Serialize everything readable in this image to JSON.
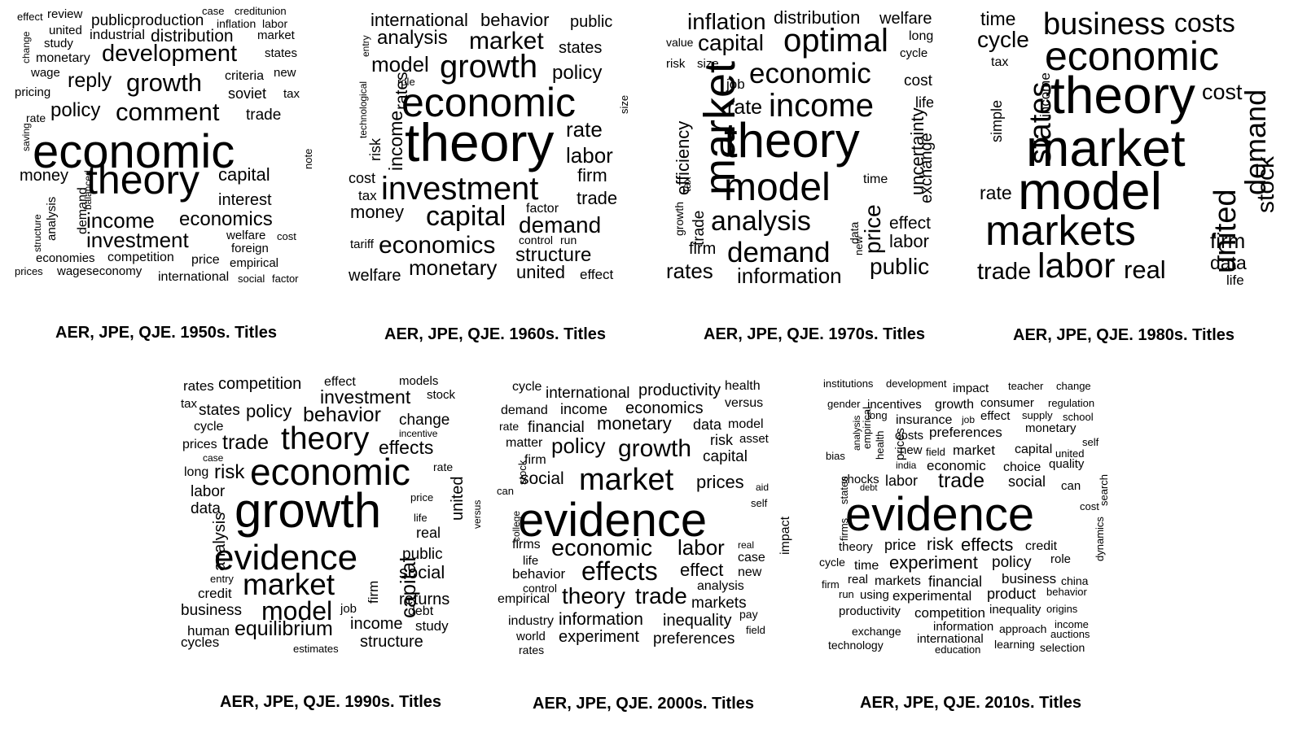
{
  "panels": [
    {
      "caption": "AER, JPE, QJE. 1950s. Titles",
      "words": [
        {
          "t": "effect"
        },
        {
          "t": "review"
        },
        {
          "t": "case"
        },
        {
          "t": "creditunion"
        },
        {
          "t": "change"
        },
        {
          "t": "united"
        },
        {
          "t": "publicproduction"
        },
        {
          "t": "inflation"
        },
        {
          "t": "labor"
        },
        {
          "t": "study"
        },
        {
          "t": "industrial"
        },
        {
          "t": "distribution"
        },
        {
          "t": "market"
        },
        {
          "t": "monetary"
        },
        {
          "t": "development"
        },
        {
          "t": "states"
        },
        {
          "t": "wage"
        },
        {
          "t": "reply"
        },
        {
          "t": "growth"
        },
        {
          "t": "criteria"
        },
        {
          "t": "new"
        },
        {
          "t": "pricing"
        },
        {
          "t": "soviet"
        },
        {
          "t": "tax"
        },
        {
          "t": "policy"
        },
        {
          "t": "comment"
        },
        {
          "t": "trade"
        },
        {
          "t": "rate"
        },
        {
          "t": "saving"
        },
        {
          "t": "economic"
        },
        {
          "t": "note"
        },
        {
          "t": "money"
        },
        {
          "t": "theory"
        },
        {
          "t": "capital"
        },
        {
          "t": "balanced"
        },
        {
          "t": "interest"
        },
        {
          "t": "analysis"
        },
        {
          "t": "demand"
        },
        {
          "t": "income"
        },
        {
          "t": "economics"
        },
        {
          "t": "structure"
        },
        {
          "t": "investment"
        },
        {
          "t": "welfare"
        },
        {
          "t": "cost"
        },
        {
          "t": "foreign"
        },
        {
          "t": "economies"
        },
        {
          "t": "competition"
        },
        {
          "t": "price"
        },
        {
          "t": "empirical"
        },
        {
          "t": "prices"
        },
        {
          "t": "wageseconomy"
        },
        {
          "t": "international"
        },
        {
          "t": "social"
        },
        {
          "t": "factor"
        }
      ]
    },
    {
      "caption": "AER, JPE, QJE. 1960s. Titles",
      "words": [
        {
          "t": "international"
        },
        {
          "t": "behavior"
        },
        {
          "t": "public"
        },
        {
          "t": "entry"
        },
        {
          "t": "analysis"
        },
        {
          "t": "market"
        },
        {
          "t": "states"
        },
        {
          "t": "model"
        },
        {
          "t": "growth"
        },
        {
          "t": "policy"
        },
        {
          "t": "technological"
        },
        {
          "t": "role"
        },
        {
          "t": "rates"
        },
        {
          "t": "economic"
        },
        {
          "t": "size"
        },
        {
          "t": "income"
        },
        {
          "t": "risk"
        },
        {
          "t": "theory"
        },
        {
          "t": "rate"
        },
        {
          "t": "labor"
        },
        {
          "t": "firm"
        },
        {
          "t": "cost"
        },
        {
          "t": "investment"
        },
        {
          "t": "tax"
        },
        {
          "t": "trade"
        },
        {
          "t": "money"
        },
        {
          "t": "capital"
        },
        {
          "t": "factor"
        },
        {
          "t": "demand"
        },
        {
          "t": "tariff"
        },
        {
          "t": "economics"
        },
        {
          "t": "control"
        },
        {
          "t": "run"
        },
        {
          "t": "structure"
        },
        {
          "t": "welfare"
        },
        {
          "t": "monetary"
        },
        {
          "t": "united"
        },
        {
          "t": "effect"
        }
      ]
    },
    {
      "caption": "AER, JPE, QJE. 1970s. Titles",
      "words": [
        {
          "t": "inflation"
        },
        {
          "t": "distribution"
        },
        {
          "t": "welfare"
        },
        {
          "t": "value"
        },
        {
          "t": "capital"
        },
        {
          "t": "optimal"
        },
        {
          "t": "long"
        },
        {
          "t": "cycle"
        },
        {
          "t": "risk"
        },
        {
          "t": "size"
        },
        {
          "t": "economic"
        },
        {
          "t": "job"
        },
        {
          "t": "cost"
        },
        {
          "t": "market"
        },
        {
          "t": "rate"
        },
        {
          "t": "income"
        },
        {
          "t": "life"
        },
        {
          "t": "efficiency"
        },
        {
          "t": "tax"
        },
        {
          "t": "theory"
        },
        {
          "t": "uncertainty"
        },
        {
          "t": "trade"
        },
        {
          "t": "growth"
        },
        {
          "t": "model"
        },
        {
          "t": "exchange"
        },
        {
          "t": "time"
        },
        {
          "t": "analysis"
        },
        {
          "t": "price"
        },
        {
          "t": "new"
        },
        {
          "t": "data"
        },
        {
          "t": "effect"
        },
        {
          "t": "firm"
        },
        {
          "t": "demand"
        },
        {
          "t": "labor"
        },
        {
          "t": "rates"
        },
        {
          "t": "information"
        },
        {
          "t": "public"
        }
      ]
    },
    {
      "caption": "AER, JPE, QJE. 1980s. Titles",
      "words": [
        {
          "t": "time"
        },
        {
          "t": "business"
        },
        {
          "t": "costs"
        },
        {
          "t": "cycle"
        },
        {
          "t": "economic"
        },
        {
          "t": "tax"
        },
        {
          "t": "income"
        },
        {
          "t": "states"
        },
        {
          "t": "simple"
        },
        {
          "t": "theory"
        },
        {
          "t": "cost"
        },
        {
          "t": "market"
        },
        {
          "t": "demand"
        },
        {
          "t": "stock"
        },
        {
          "t": "rate"
        },
        {
          "t": "model"
        },
        {
          "t": "united"
        },
        {
          "t": "markets"
        },
        {
          "t": "firm"
        },
        {
          "t": "trade"
        },
        {
          "t": "labor"
        },
        {
          "t": "real"
        },
        {
          "t": "data"
        },
        {
          "t": "life"
        }
      ]
    },
    {
      "caption": "AER, JPE, QJE. 1990s. Titles",
      "words": [
        {
          "t": "rates"
        },
        {
          "t": "competition"
        },
        {
          "t": "effect"
        },
        {
          "t": "models"
        },
        {
          "t": "tax"
        },
        {
          "t": "investment"
        },
        {
          "t": "stock"
        },
        {
          "t": "states"
        },
        {
          "t": "policy"
        },
        {
          "t": "behavior"
        },
        {
          "t": "change"
        },
        {
          "t": "cycle"
        },
        {
          "t": "incentive"
        },
        {
          "t": "prices"
        },
        {
          "t": "trade"
        },
        {
          "t": "theory"
        },
        {
          "t": "effects"
        },
        {
          "t": "case"
        },
        {
          "t": "economic"
        },
        {
          "t": "rate"
        },
        {
          "t": "long"
        },
        {
          "t": "risk"
        },
        {
          "t": "united"
        },
        {
          "t": "labor"
        },
        {
          "t": "price"
        },
        {
          "t": "versus"
        },
        {
          "t": "data"
        },
        {
          "t": "growth"
        },
        {
          "t": "life"
        },
        {
          "t": "real"
        },
        {
          "t": "analysis"
        },
        {
          "t": "evidence"
        },
        {
          "t": "capital"
        },
        {
          "t": "public"
        },
        {
          "t": "entry"
        },
        {
          "t": "firm"
        },
        {
          "t": "social"
        },
        {
          "t": "credit"
        },
        {
          "t": "market"
        },
        {
          "t": "returns"
        },
        {
          "t": "business"
        },
        {
          "t": "model"
        },
        {
          "t": "job"
        },
        {
          "t": "debt"
        },
        {
          "t": "income"
        },
        {
          "t": "study"
        },
        {
          "t": "human"
        },
        {
          "t": "equilibrium"
        },
        {
          "t": "structure"
        },
        {
          "t": "cycles"
        },
        {
          "t": "estimates"
        }
      ]
    },
    {
      "caption": "AER, JPE, QJE. 2000s. Titles",
      "words": [
        {
          "t": "cycle"
        },
        {
          "t": "international"
        },
        {
          "t": "productivity"
        },
        {
          "t": "health"
        },
        {
          "t": "demand"
        },
        {
          "t": "income"
        },
        {
          "t": "economics"
        },
        {
          "t": "versus"
        },
        {
          "t": "rate"
        },
        {
          "t": "financial"
        },
        {
          "t": "monetary"
        },
        {
          "t": "data"
        },
        {
          "t": "model"
        },
        {
          "t": "matter"
        },
        {
          "t": "policy"
        },
        {
          "t": "growth"
        },
        {
          "t": "risk"
        },
        {
          "t": "asset"
        },
        {
          "t": "stock"
        },
        {
          "t": "firm"
        },
        {
          "t": "capital"
        },
        {
          "t": "can"
        },
        {
          "t": "social"
        },
        {
          "t": "market"
        },
        {
          "t": "prices"
        },
        {
          "t": "aid"
        },
        {
          "t": "self"
        },
        {
          "t": "college"
        },
        {
          "t": "evidence"
        },
        {
          "t": "impact"
        },
        {
          "t": "firms"
        },
        {
          "t": "economic"
        },
        {
          "t": "labor"
        },
        {
          "t": "real"
        },
        {
          "t": "life"
        },
        {
          "t": "case"
        },
        {
          "t": "behavior"
        },
        {
          "t": "effects"
        },
        {
          "t": "effect"
        },
        {
          "t": "new"
        },
        {
          "t": "control"
        },
        {
          "t": "analysis"
        },
        {
          "t": "empirical"
        },
        {
          "t": "theory"
        },
        {
          "t": "trade"
        },
        {
          "t": "markets"
        },
        {
          "t": "industry"
        },
        {
          "t": "information"
        },
        {
          "t": "inequality"
        },
        {
          "t": "pay"
        },
        {
          "t": "field"
        },
        {
          "t": "world"
        },
        {
          "t": "experiment"
        },
        {
          "t": "preferences"
        },
        {
          "t": "rates"
        }
      ]
    },
    {
      "caption": "AER, JPE, QJE. 2010s. Titles",
      "words": [
        {
          "t": "institutions"
        },
        {
          "t": "development"
        },
        {
          "t": "impact"
        },
        {
          "t": "teacher"
        },
        {
          "t": "change"
        },
        {
          "t": "gender"
        },
        {
          "t": "incentives"
        },
        {
          "t": "growth"
        },
        {
          "t": "consumer"
        },
        {
          "t": "regulation"
        },
        {
          "t": "analysis"
        },
        {
          "t": "empirical"
        },
        {
          "t": "long"
        },
        {
          "t": "job"
        },
        {
          "t": "effect"
        },
        {
          "t": "supply"
        },
        {
          "t": "school"
        },
        {
          "t": "health"
        },
        {
          "t": "insurance"
        },
        {
          "t": "prices"
        },
        {
          "t": "monetary"
        },
        {
          "t": "costs"
        },
        {
          "t": "preferences"
        },
        {
          "t": "self"
        },
        {
          "t": "bias"
        },
        {
          "t": "new"
        },
        {
          "t": "field"
        },
        {
          "t": "market"
        },
        {
          "t": "capital"
        },
        {
          "t": "united"
        },
        {
          "t": "india"
        },
        {
          "t": "economic"
        },
        {
          "t": "choice"
        },
        {
          "t": "quality"
        },
        {
          "t": "states"
        },
        {
          "t": "shocks"
        },
        {
          "t": "debt"
        },
        {
          "t": "labor"
        },
        {
          "t": "trade"
        },
        {
          "t": "social"
        },
        {
          "t": "can"
        },
        {
          "t": "search"
        },
        {
          "t": "firms"
        },
        {
          "t": "evidence"
        },
        {
          "t": "cost"
        },
        {
          "t": "dynamics"
        },
        {
          "t": "theory"
        },
        {
          "t": "price"
        },
        {
          "t": "risk"
        },
        {
          "t": "effects"
        },
        {
          "t": "credit"
        },
        {
          "t": "cycle"
        },
        {
          "t": "time"
        },
        {
          "t": "experiment"
        },
        {
          "t": "policy"
        },
        {
          "t": "role"
        },
        {
          "t": "firm"
        },
        {
          "t": "real"
        },
        {
          "t": "markets"
        },
        {
          "t": "financial"
        },
        {
          "t": "business"
        },
        {
          "t": "china"
        },
        {
          "t": "run"
        },
        {
          "t": "using"
        },
        {
          "t": "experimental"
        },
        {
          "t": "product"
        },
        {
          "t": "behavior"
        },
        {
          "t": "productivity"
        },
        {
          "t": "competition"
        },
        {
          "t": "inequality"
        },
        {
          "t": "origins"
        },
        {
          "t": "exchange"
        },
        {
          "t": "information"
        },
        {
          "t": "approach"
        },
        {
          "t": "income"
        },
        {
          "t": "auctions"
        },
        {
          "t": "technology"
        },
        {
          "t": "international"
        },
        {
          "t": "learning"
        },
        {
          "t": "selection"
        },
        {
          "t": "education"
        }
      ]
    }
  ]
}
